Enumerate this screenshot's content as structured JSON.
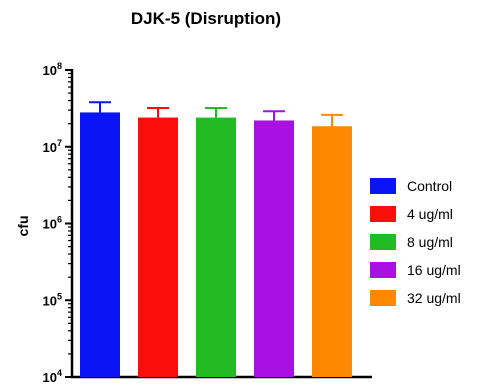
{
  "chart_data": {
    "type": "bar",
    "title": "DJK-5 (Disruption)",
    "xlabel": "",
    "ylabel": "cfu",
    "yscale": "log",
    "ylim": [
      10000,
      100000000
    ],
    "yticks": [
      {
        "value": 10000,
        "base": "10",
        "exp": "4"
      },
      {
        "value": 100000,
        "base": "10",
        "exp": "5"
      },
      {
        "value": 1000000,
        "base": "10",
        "exp": "6"
      },
      {
        "value": 10000000,
        "base": "10",
        "exp": "7"
      },
      {
        "value": 100000000,
        "base": "10",
        "exp": "8"
      }
    ],
    "grid": false,
    "legend_position": "right",
    "categories": [
      "Control",
      "4 ug/ml",
      "8 ug/ml",
      "16 ug/ml",
      "32 ug/ml"
    ],
    "values": [
      28000000,
      24000000,
      24000000,
      22000000,
      18500000
    ],
    "error_upper": [
      38000000,
      32000000,
      32000000,
      29000000,
      26000000
    ],
    "colors": [
      "#0a14f5",
      "#fc0d0d",
      "#22bb22",
      "#a712e3",
      "#ff8800"
    ]
  }
}
